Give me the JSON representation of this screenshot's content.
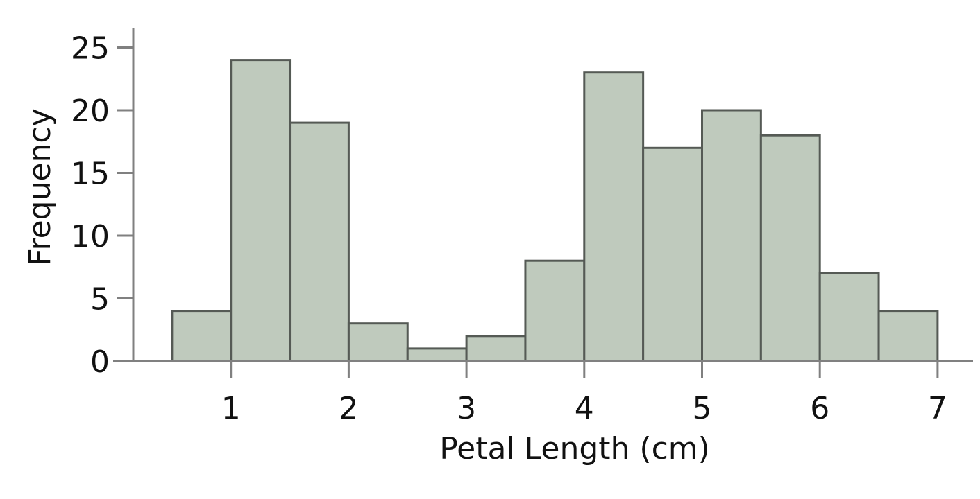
{
  "chart_data": {
    "type": "bar",
    "title": "",
    "xlabel": "Petal Length (cm)",
    "ylabel": "Frequency",
    "bins": [
      {
        "x0": 0.5,
        "x1": 1.0,
        "count": 4
      },
      {
        "x0": 1.0,
        "x1": 1.5,
        "count": 24
      },
      {
        "x0": 1.5,
        "x1": 2.0,
        "count": 19
      },
      {
        "x0": 2.0,
        "x1": 2.5,
        "count": 3
      },
      {
        "x0": 2.5,
        "x1": 3.0,
        "count": 1
      },
      {
        "x0": 3.0,
        "x1": 3.5,
        "count": 2
      },
      {
        "x0": 3.5,
        "x1": 4.0,
        "count": 8
      },
      {
        "x0": 4.0,
        "x1": 4.5,
        "count": 23
      },
      {
        "x0": 4.5,
        "x1": 5.0,
        "count": 17
      },
      {
        "x0": 5.0,
        "x1": 5.5,
        "count": 20
      },
      {
        "x0": 5.5,
        "x1": 6.0,
        "count": 18
      },
      {
        "x0": 6.0,
        "x1": 6.5,
        "count": 7
      },
      {
        "x0": 6.5,
        "x1": 7.0,
        "count": 4
      }
    ],
    "xticks": [
      "1",
      "2",
      "3",
      "4",
      "5",
      "6",
      "7"
    ],
    "xtick_values": [
      1,
      2,
      3,
      4,
      5,
      6,
      7
    ],
    "yticks": [
      "0",
      "5",
      "10",
      "15",
      "20",
      "25"
    ],
    "ytick_values": [
      0,
      5,
      10,
      15,
      20,
      25
    ],
    "xlim": [
      0.0,
      7.3
    ],
    "ylim": [
      0,
      26
    ],
    "grid": false,
    "legend": "none",
    "colors": {
      "bar_fill": "#bfcabd",
      "bar_edge": "#555a55",
      "axis": "#808080",
      "text": "#111111"
    }
  }
}
